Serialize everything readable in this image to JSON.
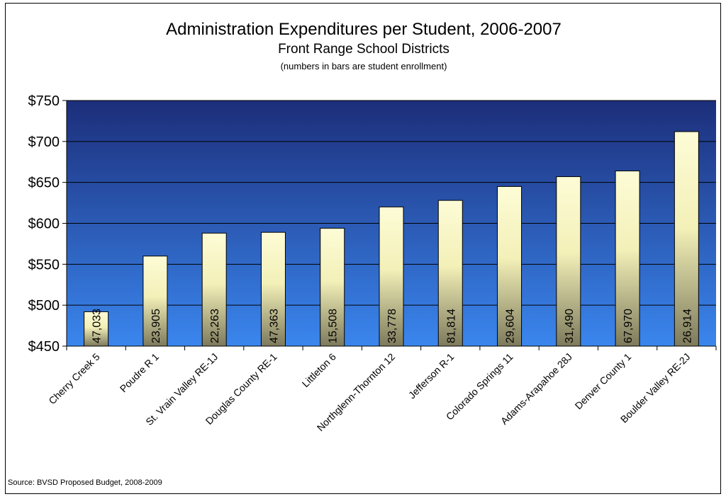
{
  "chart_data": {
    "type": "bar",
    "title": "Administration Expenditures per Student, 2006-2007",
    "subtitle": "Front Range School Districts",
    "note": "(numbers in bars are student enrollment)",
    "source": "Source: BVSD Proposed Budget, 2008-2009",
    "ylim": [
      450,
      750
    ],
    "yticks": [
      "$450",
      "$500",
      "$550",
      "$600",
      "$650",
      "$700",
      "$750"
    ],
    "ytick_values": [
      450,
      500,
      550,
      600,
      650,
      700,
      750
    ],
    "categories": [
      "Cherry Creek 5",
      "Poudre R 1",
      "St. Vrain Valley RE-1J",
      "Douglas County RE-1",
      "Littleton 6",
      "Northglenn-Thornton 12",
      "Jefferson R-1",
      "Colorado Springs 11",
      "Adams-Arapahoe 28J",
      "Denver County 1",
      "Boulder Valley RE-2J"
    ],
    "values": [
      492,
      560,
      588,
      589,
      594,
      620,
      628,
      645,
      657,
      664,
      712
    ],
    "bar_labels": [
      "47,033",
      "23,905",
      "22,263",
      "47,363",
      "15,508",
      "33,778",
      "81,814",
      "29,604",
      "31,490",
      "67,970",
      "26,914"
    ],
    "grid": true,
    "legend": "none",
    "colors": {
      "plot_top": "#1c2e7a",
      "plot_bottom": "#3a86ee",
      "bar_top": "#fdfcd6",
      "bar_bottom": "#7d7a5c",
      "grid": "#000000"
    }
  }
}
